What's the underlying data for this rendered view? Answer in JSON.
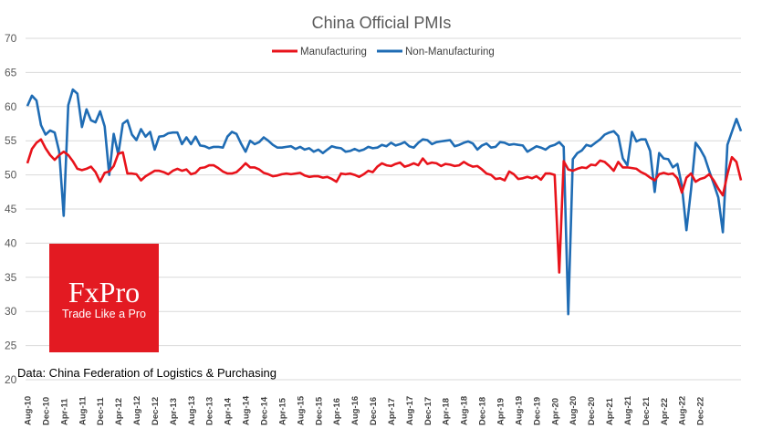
{
  "chart_data": {
    "type": "line",
    "title": "China Official PMIs",
    "source": "Data: China Federation of Logistics & Purchasing",
    "xlabel": "",
    "ylabel": "",
    "ylim": [
      20,
      70
    ],
    "yticks": [
      20,
      25,
      30,
      35,
      40,
      45,
      50,
      55,
      60,
      65,
      70
    ],
    "grid": true,
    "legend_position": "top-center",
    "x_tick_labels": [
      "Aug-10",
      "Dec-10",
      "Apr-11",
      "Aug-11",
      "Dec-11",
      "Apr-12",
      "Aug-12",
      "Dec-12",
      "Apr-13",
      "Aug-13",
      "Dec-13",
      "Apr-14",
      "Aug-14",
      "Dec-14",
      "Apr-15",
      "Aug-15",
      "Dec-15",
      "Apr-16",
      "Aug-16",
      "Dec-16",
      "Apr-17",
      "Aug-17",
      "Dec-17",
      "Apr-18",
      "Aug-18",
      "Dec-18",
      "Apr-19",
      "Aug-19",
      "Dec-19",
      "Apr-20",
      "Aug-20",
      "Dec-20",
      "Apr-21",
      "Aug-21",
      "Dec-21",
      "Apr-22",
      "Aug-22",
      "Dec-22"
    ],
    "series": [
      {
        "name": "Manufacturing",
        "color": "#e8131b",
        "values": [
          51.7,
          53.8,
          54.7,
          55.2,
          53.9,
          52.9,
          52.2,
          52.9,
          53.4,
          52.9,
          52.0,
          50.9,
          50.7,
          50.9,
          51.2,
          50.4,
          49.0,
          50.3,
          50.5,
          51.3,
          53.1,
          53.3,
          50.2,
          50.2,
          50.1,
          49.2,
          49.8,
          50.2,
          50.6,
          50.6,
          50.4,
          50.1,
          50.6,
          50.9,
          50.6,
          50.8,
          50.1,
          50.3,
          51.0,
          51.1,
          51.4,
          51.4,
          51.0,
          50.5,
          50.2,
          50.2,
          50.4,
          51.0,
          51.7,
          51.1,
          51.1,
          50.8,
          50.3,
          50.1,
          49.8,
          49.9,
          50.1,
          50.2,
          50.1,
          50.2,
          50.3,
          49.9,
          49.7,
          49.8,
          49.8,
          49.6,
          49.7,
          49.4,
          49.0,
          50.2,
          50.1,
          50.2,
          50.0,
          49.7,
          50.1,
          50.6,
          50.4,
          51.2,
          51.7,
          51.4,
          51.3,
          51.6,
          51.8,
          51.2,
          51.4,
          51.7,
          51.4,
          52.4,
          51.6,
          51.8,
          51.7,
          51.3,
          51.6,
          51.5,
          51.3,
          51.4,
          51.9,
          51.5,
          51.2,
          51.3,
          50.8,
          50.2,
          50.0,
          49.4,
          49.5,
          49.2,
          50.5,
          50.1,
          49.4,
          49.5,
          49.7,
          49.5,
          49.8,
          49.3,
          50.2,
          50.2,
          50.0,
          35.7,
          52.0,
          50.8,
          50.6,
          50.9,
          51.1,
          51.0,
          51.5,
          51.4,
          52.1,
          51.9,
          51.3,
          50.6,
          51.9,
          51.1,
          51.1,
          51.0,
          50.9,
          50.4,
          50.1,
          49.6,
          49.2,
          50.1,
          50.3,
          50.1,
          50.2,
          49.5,
          47.4,
          49.6,
          50.2,
          49.0,
          49.4,
          49.6,
          50.1,
          49.2,
          48.0,
          47.0,
          50.1,
          52.6,
          51.9,
          49.2
        ]
      },
      {
        "name": "Non-Manufacturing",
        "color": "#1f6cb4",
        "values": [
          60.1,
          61.6,
          60.9,
          57.3,
          55.9,
          56.5,
          56.2,
          53.4,
          44.0,
          60.2,
          62.5,
          61.9,
          57.0,
          59.6,
          58.0,
          57.7,
          59.3,
          57.1,
          50.0,
          56.0,
          53.0,
          57.5,
          58.0,
          55.9,
          55.1,
          56.7,
          55.6,
          56.3,
          53.7,
          55.6,
          55.7,
          56.1,
          56.2,
          56.2,
          54.5,
          55.5,
          54.5,
          55.6,
          54.3,
          54.2,
          53.9,
          54.1,
          54.1,
          54.0,
          55.6,
          56.3,
          56.0,
          54.6,
          53.4,
          55.0,
          54.5,
          54.8,
          55.5,
          55.0,
          54.4,
          54.0,
          54.0,
          54.1,
          54.2,
          53.8,
          54.1,
          53.7,
          53.9,
          53.4,
          53.7,
          53.2,
          53.7,
          54.2,
          54.0,
          53.9,
          53.4,
          53.5,
          53.8,
          53.5,
          53.7,
          54.1,
          53.9,
          54.0,
          54.4,
          54.2,
          54.7,
          54.3,
          54.5,
          54.8,
          54.2,
          54.0,
          54.7,
          55.2,
          55.1,
          54.5,
          54.8,
          54.9,
          55.0,
          55.1,
          54.2,
          54.4,
          54.7,
          54.9,
          54.6,
          53.7,
          54.3,
          54.6,
          54.0,
          54.1,
          54.8,
          54.7,
          54.4,
          54.5,
          54.4,
          54.3,
          53.4,
          53.8,
          54.2,
          54.0,
          53.7,
          54.2,
          54.4,
          54.8,
          54.1,
          29.6,
          52.3,
          53.2,
          53.6,
          54.4,
          54.2,
          54.7,
          55.2,
          55.9,
          56.2,
          56.4,
          55.7,
          52.4,
          51.4,
          56.3,
          54.9,
          55.2,
          55.2,
          53.5,
          47.5,
          53.2,
          52.4,
          52.3,
          51.1,
          51.6,
          48.4,
          41.9,
          47.8,
          54.7,
          53.8,
          52.6,
          50.6,
          48.7,
          46.7,
          41.6,
          54.4,
          56.3,
          58.2,
          56.4
        ]
      }
    ]
  },
  "logo": {
    "brand": "FxPro",
    "tagline": "Trade Like a Pro",
    "color": "#e31a22"
  }
}
